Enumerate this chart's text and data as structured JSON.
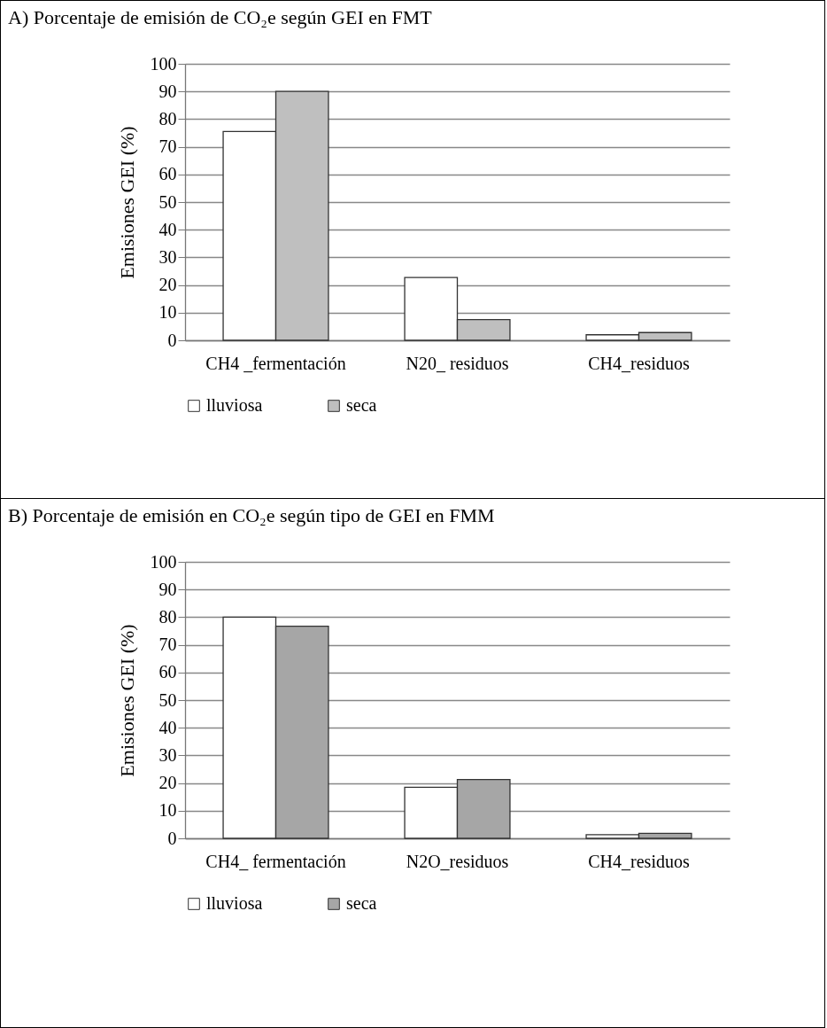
{
  "chart_data": [
    {
      "type": "bar",
      "title": "A) Porcentaje de emisión de CO₂e según  GEI en FMT",
      "ylabel": "Emisiones GEI (%)",
      "categories": [
        "CH4 _fermentación",
        "N20_ residuos",
        "CH4_residuos"
      ],
      "series": [
        {
          "name": "lluviosa",
          "color": "#ffffff",
          "values": [
            75.5,
            22.7,
            2
          ]
        },
        {
          "name": "seca",
          "color": "#bfbfbf",
          "values": [
            90,
            7.5,
            2.8
          ]
        }
      ],
      "ylim": [
        0,
        100
      ],
      "yticks": [
        0,
        10,
        20,
        30,
        40,
        50,
        60,
        70,
        80,
        90,
        100
      ],
      "grid": "y",
      "legend": "bottom"
    },
    {
      "type": "bar",
      "title": "B) Porcentaje de emisión en CO₂e según tipo de GEI en FMM",
      "ylabel": "Emisiones  GEI (%)",
      "categories": [
        "CH4_ fermentación",
        "N2O_residuos",
        "CH4_residuos"
      ],
      "series": [
        {
          "name": "lluviosa",
          "color": "#ffffff",
          "values": [
            80,
            18.5,
            1.3
          ]
        },
        {
          "name": "seca",
          "color": "#a6a6a6",
          "values": [
            76.7,
            21.3,
            1.8
          ]
        }
      ],
      "ylim": [
        0,
        100
      ],
      "yticks": [
        0,
        10,
        20,
        30,
        40,
        50,
        60,
        70,
        80,
        90,
        100
      ],
      "grid": "y",
      "legend": "bottom"
    }
  ]
}
